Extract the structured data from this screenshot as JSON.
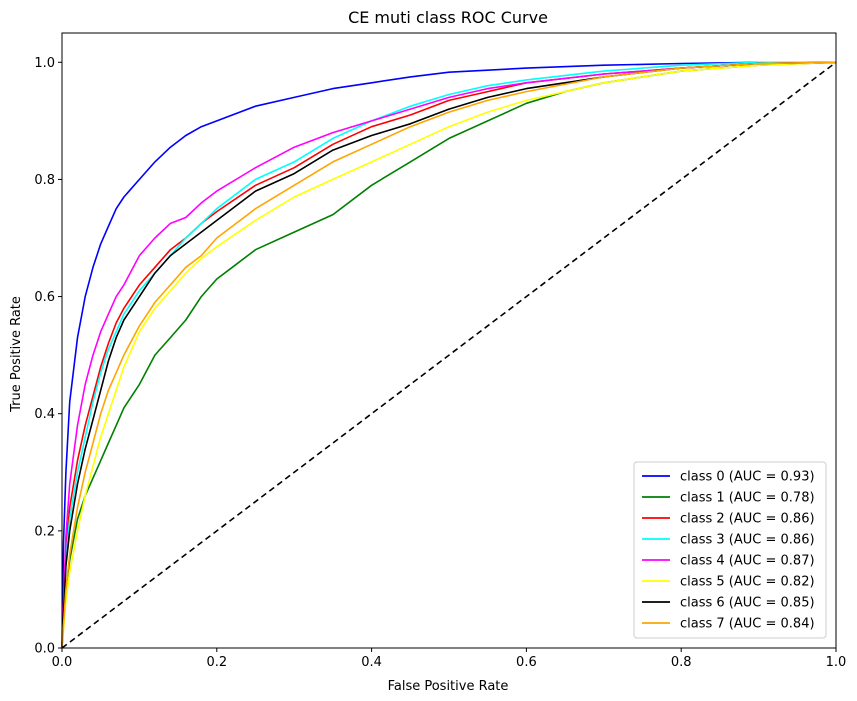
{
  "chart_data": {
    "type": "line",
    "title": "CE muti class ROC Curve",
    "xlabel": "False Positive Rate",
    "ylabel": "True Positive Rate",
    "xlim": [
      0,
      1
    ],
    "ylim": [
      0,
      1.05
    ],
    "xticks": [
      "0.0",
      "0.2",
      "0.4",
      "0.6",
      "0.8",
      "1.0"
    ],
    "yticks": [
      "0.0",
      "0.2",
      "0.4",
      "0.6",
      "0.8",
      "1.0"
    ],
    "grid": false,
    "legend_position": "lower-right",
    "diagonal": {
      "x": [
        0,
        1
      ],
      "y": [
        0,
        1
      ],
      "color": "#000000",
      "style": "dashed"
    },
    "series": [
      {
        "name": "class 0 (AUC = 0.93)",
        "color": "#0000ff",
        "x": [
          0,
          0.002,
          0.005,
          0.01,
          0.02,
          0.03,
          0.04,
          0.05,
          0.06,
          0.07,
          0.08,
          0.1,
          0.12,
          0.14,
          0.16,
          0.18,
          0.2,
          0.25,
          0.3,
          0.35,
          0.4,
          0.45,
          0.5,
          0.6,
          0.7,
          0.8,
          0.9,
          1.0
        ],
        "y": [
          0,
          0.18,
          0.3,
          0.42,
          0.53,
          0.6,
          0.65,
          0.69,
          0.72,
          0.75,
          0.77,
          0.8,
          0.83,
          0.855,
          0.875,
          0.89,
          0.9,
          0.925,
          0.94,
          0.955,
          0.965,
          0.975,
          0.983,
          0.99,
          0.995,
          0.998,
          1.0,
          1.0
        ]
      },
      {
        "name": "class 1 (AUC = 0.78)",
        "color": "#008000",
        "x": [
          0,
          0.005,
          0.01,
          0.02,
          0.03,
          0.04,
          0.05,
          0.06,
          0.07,
          0.08,
          0.1,
          0.12,
          0.14,
          0.16,
          0.18,
          0.2,
          0.22,
          0.25,
          0.3,
          0.35,
          0.4,
          0.45,
          0.5,
          0.55,
          0.6,
          0.65,
          0.7,
          0.75,
          0.8,
          0.85,
          0.9,
          1.0
        ],
        "y": [
          0,
          0.1,
          0.15,
          0.22,
          0.26,
          0.29,
          0.32,
          0.35,
          0.38,
          0.41,
          0.45,
          0.5,
          0.53,
          0.56,
          0.6,
          0.63,
          0.65,
          0.68,
          0.71,
          0.74,
          0.79,
          0.83,
          0.87,
          0.9,
          0.93,
          0.95,
          0.965,
          0.975,
          0.985,
          0.99,
          0.995,
          1.0
        ]
      },
      {
        "name": "class 2 (AUC = 0.86)",
        "color": "#ff0000",
        "x": [
          0,
          0.005,
          0.01,
          0.02,
          0.03,
          0.04,
          0.05,
          0.06,
          0.07,
          0.08,
          0.1,
          0.12,
          0.14,
          0.16,
          0.18,
          0.2,
          0.25,
          0.3,
          0.35,
          0.4,
          0.45,
          0.5,
          0.55,
          0.6,
          0.7,
          0.8,
          0.9,
          1.0
        ],
        "y": [
          0,
          0.17,
          0.24,
          0.32,
          0.38,
          0.43,
          0.48,
          0.52,
          0.555,
          0.58,
          0.62,
          0.65,
          0.68,
          0.7,
          0.725,
          0.745,
          0.79,
          0.82,
          0.86,
          0.89,
          0.91,
          0.935,
          0.95,
          0.965,
          0.98,
          0.99,
          0.998,
          1.0
        ]
      },
      {
        "name": "class 3 (AUC = 0.86)",
        "color": "#00ffff",
        "x": [
          0,
          0.005,
          0.01,
          0.02,
          0.03,
          0.04,
          0.05,
          0.06,
          0.07,
          0.08,
          0.1,
          0.12,
          0.14,
          0.16,
          0.18,
          0.2,
          0.25,
          0.3,
          0.35,
          0.4,
          0.45,
          0.5,
          0.55,
          0.6,
          0.7,
          0.8,
          0.9,
          1.0
        ],
        "y": [
          0,
          0.15,
          0.22,
          0.3,
          0.36,
          0.42,
          0.47,
          0.51,
          0.54,
          0.57,
          0.61,
          0.64,
          0.67,
          0.7,
          0.725,
          0.75,
          0.8,
          0.83,
          0.87,
          0.9,
          0.925,
          0.945,
          0.96,
          0.97,
          0.985,
          0.995,
          1.0,
          1.0
        ]
      },
      {
        "name": "class 4 (AUC = 0.87)",
        "color": "#ff00ff",
        "x": [
          0,
          0.005,
          0.01,
          0.02,
          0.03,
          0.04,
          0.05,
          0.06,
          0.07,
          0.08,
          0.1,
          0.12,
          0.14,
          0.16,
          0.18,
          0.2,
          0.25,
          0.3,
          0.35,
          0.4,
          0.45,
          0.5,
          0.55,
          0.6,
          0.7,
          0.8,
          0.9,
          1.0
        ],
        "y": [
          0,
          0.19,
          0.28,
          0.38,
          0.45,
          0.5,
          0.54,
          0.57,
          0.6,
          0.62,
          0.67,
          0.7,
          0.725,
          0.735,
          0.76,
          0.78,
          0.82,
          0.855,
          0.88,
          0.9,
          0.92,
          0.94,
          0.955,
          0.965,
          0.98,
          0.99,
          0.998,
          1.0
        ]
      },
      {
        "name": "class 5 (AUC = 0.82)",
        "color": "#ffff00",
        "x": [
          0,
          0.005,
          0.01,
          0.02,
          0.03,
          0.04,
          0.05,
          0.06,
          0.07,
          0.08,
          0.1,
          0.12,
          0.14,
          0.16,
          0.18,
          0.2,
          0.25,
          0.3,
          0.35,
          0.4,
          0.45,
          0.5,
          0.55,
          0.6,
          0.7,
          0.8,
          0.9,
          1.0
        ],
        "y": [
          0,
          0.08,
          0.13,
          0.2,
          0.26,
          0.31,
          0.36,
          0.4,
          0.44,
          0.48,
          0.54,
          0.58,
          0.61,
          0.64,
          0.665,
          0.685,
          0.73,
          0.77,
          0.8,
          0.83,
          0.86,
          0.89,
          0.915,
          0.935,
          0.965,
          0.985,
          0.995,
          1.0
        ]
      },
      {
        "name": "class 6 (AUC = 0.85)",
        "color": "#000000",
        "x": [
          0,
          0.005,
          0.01,
          0.02,
          0.03,
          0.04,
          0.05,
          0.06,
          0.07,
          0.08,
          0.1,
          0.12,
          0.14,
          0.16,
          0.18,
          0.2,
          0.25,
          0.3,
          0.35,
          0.4,
          0.45,
          0.5,
          0.55,
          0.6,
          0.7,
          0.8,
          0.9,
          1.0
        ],
        "y": [
          0,
          0.14,
          0.2,
          0.28,
          0.34,
          0.39,
          0.44,
          0.49,
          0.53,
          0.56,
          0.6,
          0.64,
          0.67,
          0.69,
          0.71,
          0.73,
          0.78,
          0.81,
          0.85,
          0.875,
          0.895,
          0.92,
          0.94,
          0.955,
          0.975,
          0.99,
          0.998,
          1.0
        ]
      },
      {
        "name": "class 7 (AUC = 0.84)",
        "color": "#ffa500",
        "x": [
          0,
          0.005,
          0.01,
          0.02,
          0.03,
          0.04,
          0.05,
          0.06,
          0.07,
          0.08,
          0.1,
          0.12,
          0.14,
          0.16,
          0.18,
          0.2,
          0.25,
          0.3,
          0.35,
          0.4,
          0.45,
          0.5,
          0.55,
          0.6,
          0.7,
          0.8,
          0.9,
          1.0
        ],
        "y": [
          0,
          0.1,
          0.16,
          0.24,
          0.3,
          0.35,
          0.4,
          0.44,
          0.47,
          0.5,
          0.55,
          0.59,
          0.62,
          0.65,
          0.67,
          0.7,
          0.75,
          0.79,
          0.83,
          0.86,
          0.89,
          0.915,
          0.935,
          0.95,
          0.975,
          0.99,
          0.998,
          1.0
        ]
      }
    ]
  }
}
